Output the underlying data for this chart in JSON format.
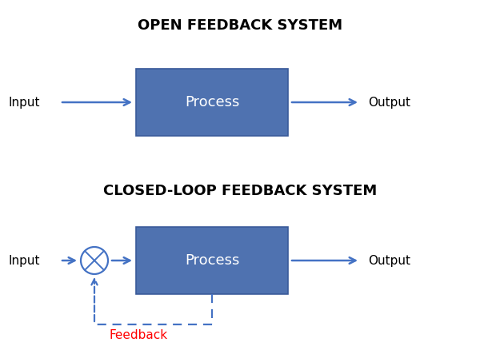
{
  "title_open": "OPEN FEEDBACK SYSTEM",
  "title_closed": "CLOSED-LOOP FEEDBACK SYSTEM",
  "process_label": "Process",
  "input_label": "Input",
  "output_label": "Output",
  "feedback_label": "Feedback",
  "box_color": "#4f72b0",
  "box_edge_color": "#3a5a9a",
  "arrow_color": "#4472C4",
  "dashed_color": "#4472C4",
  "summing_color": "#4472C4",
  "feedback_text_color": "#FF0000",
  "title_fontsize": 13,
  "label_fontsize": 11,
  "process_fontsize": 13,
  "feedback_fontsize": 11,
  "bg_color": "#ffffff"
}
